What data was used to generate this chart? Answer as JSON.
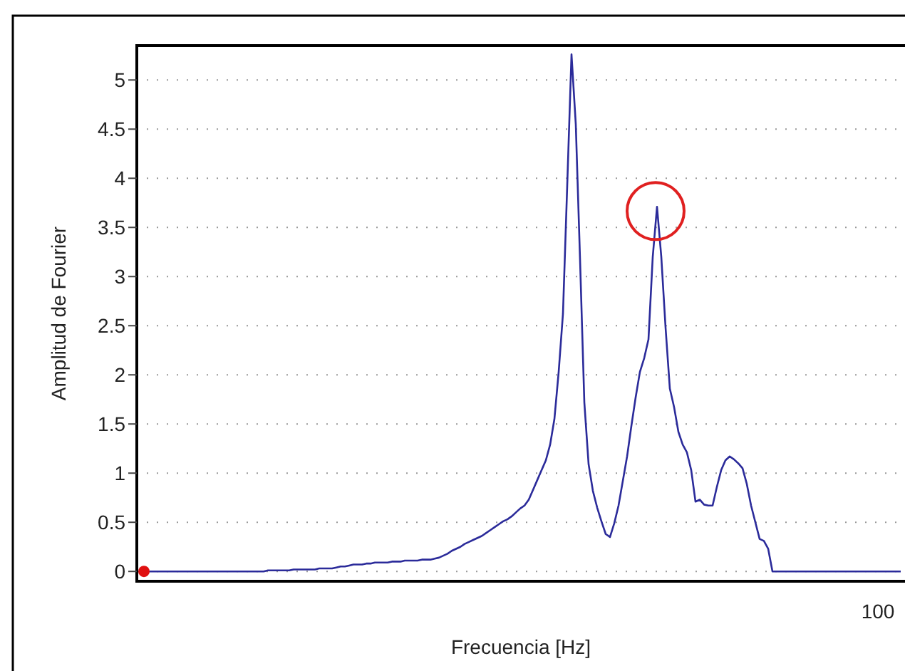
{
  "chart_data": {
    "type": "line",
    "xlabel": "Frecuencia [Hz]",
    "ylabel": "Amplitud de Fourier",
    "grid": "y",
    "ylim": [
      -0.1,
      5.35
    ],
    "yticks": [
      0,
      0.5,
      1,
      1.5,
      2,
      2.5,
      3,
      3.5,
      4,
      4.5,
      5
    ],
    "annotations": [
      "100"
    ],
    "categories": [
      null,
      null,
      null,
      null,
      null,
      null,
      null,
      null,
      null,
      null,
      null,
      null,
      null,
      null,
      null,
      null,
      null,
      null,
      null,
      null,
      null,
      null,
      null,
      null,
      null,
      null,
      null,
      null,
      null,
      null,
      null,
      null,
      null,
      null,
      null,
      null,
      null,
      null,
      null,
      null,
      null,
      null,
      null,
      null,
      null,
      null,
      null,
      null,
      null,
      null,
      null,
      null,
      null,
      null,
      null,
      null,
      null,
      null,
      null,
      null,
      null,
      null,
      null,
      null,
      null,
      null,
      null,
      null,
      null,
      null,
      null,
      null,
      null,
      null,
      null,
      null,
      null,
      null,
      null,
      null,
      null,
      null,
      null,
      null,
      null,
      null,
      null,
      null,
      null,
      null,
      null,
      null,
      null,
      null,
      null,
      null,
      null,
      null,
      null,
      null,
      null,
      null,
      null,
      null,
      null,
      null,
      null,
      null,
      null,
      null,
      null,
      null,
      null,
      null,
      null,
      null,
      null,
      null,
      null,
      null,
      null,
      null,
      null,
      null,
      null,
      null,
      null,
      null,
      null,
      null,
      null,
      null,
      null,
      null,
      null,
      null,
      null,
      null,
      null,
      null,
      null,
      null,
      null,
      null,
      null,
      null,
      null,
      null,
      null,
      null,
      null,
      null,
      null,
      null,
      null,
      null,
      null,
      null,
      null,
      null,
      null,
      null,
      null,
      null,
      null,
      null,
      null,
      null,
      null,
      null,
      null,
      null,
      null,
      null,
      null,
      null,
      null,
      null,
      null
    ],
    "series": [
      {
        "color": "#2b2b9a",
        "values": [
          0,
          0,
          0,
          0,
          0,
          0,
          0,
          0,
          0,
          0,
          0,
          0,
          0,
          0,
          0,
          0,
          0,
          0,
          0,
          0,
          0,
          0,
          0,
          0,
          0,
          0,
          0,
          0,
          0,
          0,
          0.01,
          0.01,
          0.01,
          0.01,
          0.01,
          0.01,
          0.02,
          0.02,
          0.02,
          0.02,
          0.02,
          0.02,
          0.03,
          0.03,
          0.03,
          0.03,
          0.04,
          0.05,
          0.05,
          0.06,
          0.07,
          0.07,
          0.07,
          0.08,
          0.08,
          0.09,
          0.09,
          0.09,
          0.09,
          0.1,
          0.1,
          0.1,
          0.11,
          0.11,
          0.11,
          0.11,
          0.12,
          0.12,
          0.12,
          0.13,
          0.14,
          0.16,
          0.18,
          0.21,
          0.23,
          0.25,
          0.28,
          0.3,
          0.32,
          0.34,
          0.36,
          0.39,
          0.42,
          0.45,
          0.48,
          0.51,
          0.53,
          0.56,
          0.6,
          0.64,
          0.67,
          0.73,
          0.83,
          0.93,
          1.03,
          1.13,
          1.29,
          1.55,
          2.03,
          2.62,
          3.93,
          5.26,
          4.55,
          3.17,
          1.72,
          1.09,
          0.82,
          0.65,
          0.51,
          0.38,
          0.35,
          0.49,
          0.67,
          0.92,
          1.17,
          1.48,
          1.77,
          2.03,
          2.17,
          2.36,
          3.2,
          3.71,
          3.2,
          2.48,
          1.86,
          1.67,
          1.42,
          1.29,
          1.21,
          1.03,
          0.71,
          0.73,
          0.68,
          0.67,
          0.67,
          0.86,
          1.03,
          1.13,
          1.17,
          1.14,
          1.1,
          1.05,
          0.89,
          0.67,
          0.5,
          0.33,
          0.31,
          0.23,
          0,
          0,
          0,
          0,
          0,
          0,
          0,
          0,
          0,
          0,
          0,
          0,
          0,
          0,
          0,
          0,
          0,
          0,
          0,
          0,
          0,
          0,
          0,
          0,
          0,
          0,
          0,
          0,
          0,
          0,
          0
        ]
      },
      {
        "type": "scatter",
        "color": "#e01010",
        "marker": "circle",
        "values": [
          null,
          0,
          null,
          null,
          null,
          null,
          null,
          null,
          null,
          null,
          null,
          null,
          null,
          null,
          null,
          null,
          null,
          null,
          null,
          null,
          null,
          null,
          null,
          null,
          null,
          null,
          null,
          null,
          null,
          null,
          null,
          null,
          null,
          null,
          null,
          null,
          null,
          null,
          null,
          null,
          null,
          null,
          null,
          null,
          null,
          null,
          null,
          null,
          null,
          null,
          null,
          null,
          null,
          null,
          null,
          null,
          null,
          null,
          null,
          null,
          null,
          null,
          null,
          null,
          null,
          null,
          null,
          null,
          null,
          null,
          null,
          null,
          null,
          null,
          null,
          null,
          null,
          null,
          null,
          null,
          null,
          null,
          null,
          null,
          null,
          null,
          null,
          null,
          null,
          null,
          null,
          null,
          null,
          null,
          null,
          null,
          null,
          null,
          null,
          null,
          null,
          null,
          null,
          null,
          null,
          null,
          null,
          null,
          null,
          null,
          null,
          null,
          null,
          null,
          null,
          null,
          null,
          null,
          null,
          null,
          null,
          null,
          null,
          null,
          null,
          null,
          null,
          null,
          null,
          null,
          null,
          null,
          null,
          null,
          null,
          null,
          null,
          null,
          null,
          null,
          null,
          null,
          null,
          null,
          null,
          null,
          null,
          null,
          null,
          null,
          null,
          null,
          null,
          null,
          null,
          null,
          null,
          null,
          null,
          null,
          null,
          null,
          null,
          null,
          null,
          null,
          null,
          null,
          null,
          null,
          null,
          null,
          null,
          null,
          null,
          null,
          null,
          null,
          null
        ]
      }
    ]
  }
}
